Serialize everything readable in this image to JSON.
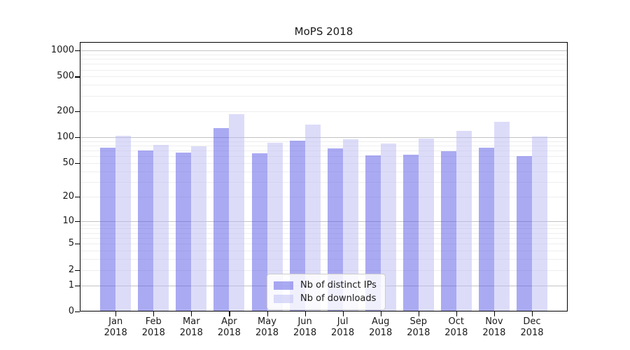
{
  "chart_data": {
    "type": "bar",
    "title": "MoPS 2018",
    "xlabel": "",
    "ylabel": "",
    "yscale": "symlog",
    "ylim": [
      0,
      1250
    ],
    "grid": true,
    "ytick_values": [
      1000,
      500,
      200,
      100,
      50,
      20,
      10,
      5,
      2,
      1,
      0
    ],
    "ytick_labels": [
      "1000",
      "500",
      "200",
      "100",
      "50",
      "20",
      "10",
      "5",
      "2",
      "1",
      "0"
    ],
    "major_grid_values": [
      1,
      10,
      100,
      1000
    ],
    "categories": [
      "Jan 2018",
      "Feb 2018",
      "Mar 2018",
      "Apr 2018",
      "May 2018",
      "Jun 2018",
      "Jul 2018",
      "Aug 2018",
      "Sep 2018",
      "Oct 2018",
      "Nov 2018",
      "Dec 2018"
    ],
    "series": [
      {
        "name": "Nb of distinct IPs",
        "color": "rgba(85, 85, 230, 0.5)",
        "solid_color": "#aaaaf2",
        "values": [
          76,
          70,
          66,
          127,
          65,
          91,
          74,
          61,
          62,
          69,
          76,
          60
        ]
      },
      {
        "name": "Nb of downloads",
        "color": "rgba(185, 185, 243, 0.5)",
        "solid_color": "#dcdcf9",
        "values": [
          103,
          81,
          78,
          184,
          86,
          140,
          95,
          84,
          96,
          119,
          150,
          102
        ]
      }
    ],
    "legend": {
      "position": "lower center"
    }
  }
}
